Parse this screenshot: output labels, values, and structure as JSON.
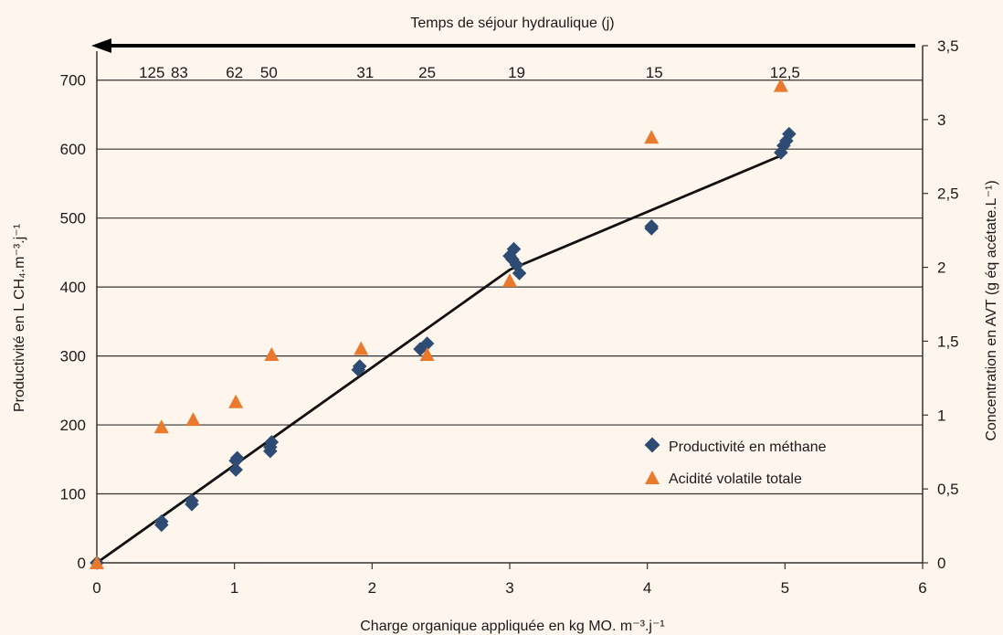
{
  "colors": {
    "background": "#fef6ed",
    "methane": "#2e4b73",
    "avt": "#e8792d",
    "line": "#111111",
    "grid": "#333333"
  },
  "chart_data": {
    "type": "scatter",
    "title": "",
    "top_axis_label": "Temps de séjour hydraulique (j)",
    "xlabel": "Charge organique appliquée en kg MO. m⁻³.j⁻¹",
    "ylabel": "Productivité en L CH₄.m⁻³.j⁻¹",
    "y2label": "Concentration en AVT (g éq acétate.L⁻¹)",
    "xlim": [
      0,
      6
    ],
    "ylim": [
      0,
      750
    ],
    "y2lim": [
      0,
      3.5
    ],
    "x_ticks": [
      "0",
      "1",
      "2",
      "3",
      "4",
      "5",
      "6"
    ],
    "y_ticks": [
      "0",
      "100",
      "200",
      "300",
      "400",
      "500",
      "600",
      "700"
    ],
    "y2_ticks": [
      "0",
      "0,5",
      "1",
      "1,5",
      "2",
      "2,5",
      "3",
      "3,5"
    ],
    "top_ticks": [
      {
        "label": "125",
        "x": 0.4
      },
      {
        "label": "83",
        "x": 0.6
      },
      {
        "label": "62",
        "x": 1.0
      },
      {
        "label": "50",
        "x": 1.25
      },
      {
        "label": "31",
        "x": 1.95
      },
      {
        "label": "25",
        "x": 2.4
      },
      {
        "label": "19",
        "x": 3.05
      },
      {
        "label": "15",
        "x": 4.05
      },
      {
        "label": "12,5",
        "x": 5.0
      }
    ],
    "grid": true,
    "legend_position": "bottom-right",
    "series": [
      {
        "name": "Productivité en méthane",
        "axis": "left",
        "marker": "diamond",
        "points": [
          [
            0.0,
            0
          ],
          [
            0.47,
            55
          ],
          [
            0.47,
            60
          ],
          [
            0.69,
            85
          ],
          [
            0.69,
            90
          ],
          [
            1.01,
            135
          ],
          [
            1.01,
            148
          ],
          [
            1.02,
            152
          ],
          [
            1.26,
            162
          ],
          [
            1.26,
            168
          ],
          [
            1.27,
            175
          ],
          [
            1.9,
            280
          ],
          [
            1.91,
            285
          ],
          [
            2.35,
            310
          ],
          [
            2.4,
            318
          ],
          [
            3.0,
            445
          ],
          [
            3.02,
            440
          ],
          [
            3.03,
            455
          ],
          [
            3.05,
            432
          ],
          [
            3.07,
            420
          ],
          [
            4.03,
            485
          ],
          [
            4.03,
            488
          ],
          [
            4.97,
            595
          ],
          [
            4.99,
            605
          ],
          [
            5.01,
            612
          ],
          [
            5.03,
            622
          ]
        ]
      },
      {
        "name": "Acidité volatile totale",
        "axis": "right",
        "marker": "triangle",
        "points": [
          [
            0.0,
            0.0
          ],
          [
            0.47,
            0.92
          ],
          [
            0.7,
            0.97
          ],
          [
            1.01,
            1.09
          ],
          [
            1.27,
            1.41
          ],
          [
            1.92,
            1.45
          ],
          [
            2.4,
            1.41
          ],
          [
            3.0,
            1.91
          ],
          [
            4.03,
            2.88
          ],
          [
            4.97,
            3.23
          ]
        ]
      },
      {
        "name": "",
        "axis": "left",
        "marker": "line",
        "points": [
          [
            0.0,
            0
          ],
          [
            3.0,
            425
          ],
          [
            5.0,
            593
          ]
        ]
      }
    ]
  }
}
